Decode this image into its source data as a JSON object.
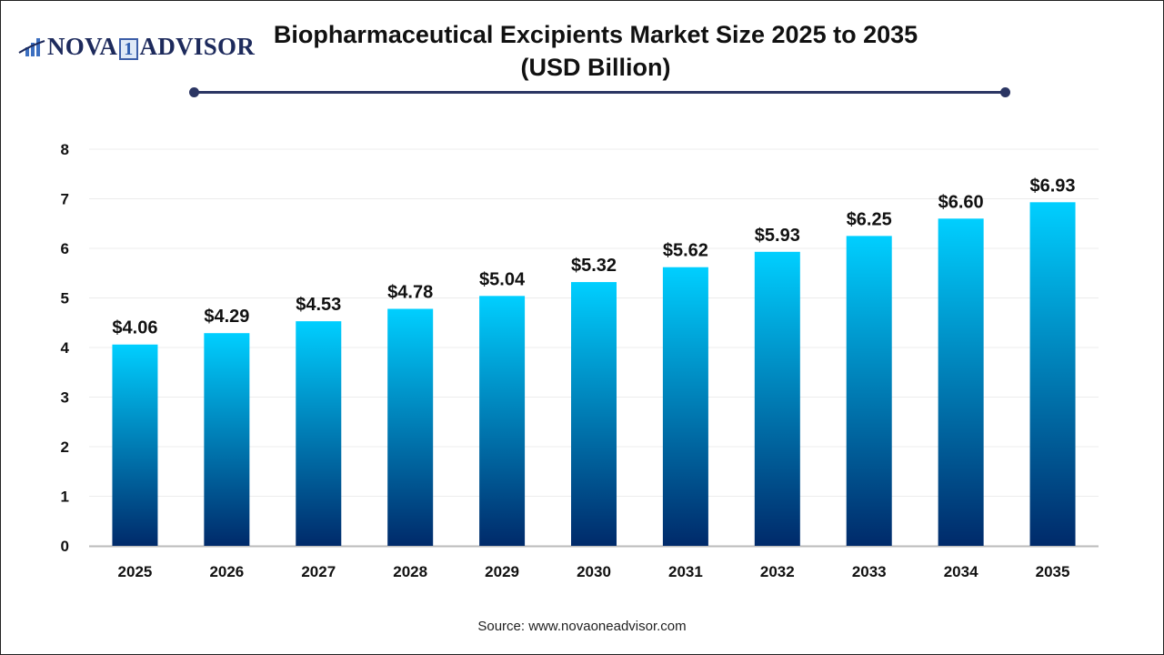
{
  "header": {
    "logo_text": "NOVA 1 ADVISOR",
    "title_line1": "Biopharmaceutical Excipients Market Size 2025 to 2035",
    "title_line2": "(USD Billion)"
  },
  "source": "Source: www.novaoneadvisor.com",
  "colors": {
    "bar_top": "#00cfff",
    "bar_bottom": "#002a6a",
    "title_rule": "#2b3563"
  },
  "chart_data": {
    "type": "bar",
    "title": "Biopharmaceutical Excipients Market Size 2025 to 2035 (USD Billion)",
    "categories": [
      "2025",
      "2026",
      "2027",
      "2028",
      "2029",
      "2030",
      "2031",
      "2032",
      "2033",
      "2034",
      "2035"
    ],
    "values": [
      4.06,
      4.29,
      4.53,
      4.78,
      5.04,
      5.32,
      5.62,
      5.93,
      6.25,
      6.6,
      6.93
    ],
    "data_labels": [
      "$4.06",
      "$4.29",
      "$4.53",
      "$4.78",
      "$5.04",
      "$5.32",
      "$5.62",
      "$5.93",
      "$6.25",
      "$6.60",
      "$6.93"
    ],
    "ylim": [
      0,
      8
    ],
    "yticks": [
      "0",
      "1",
      "2",
      "3",
      "4",
      "5",
      "6",
      "7",
      "8"
    ],
    "grid": true,
    "xlabel": "",
    "ylabel": ""
  }
}
